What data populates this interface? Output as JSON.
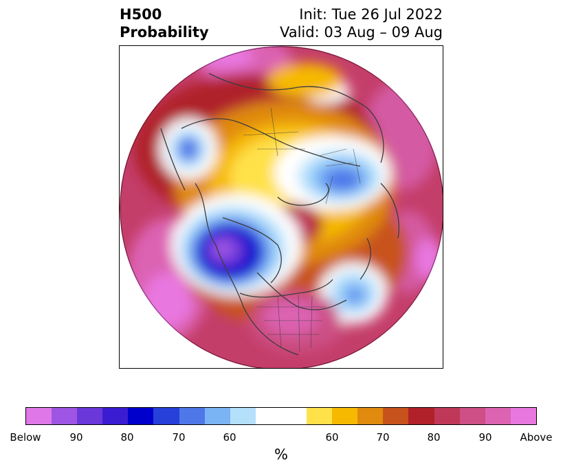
{
  "title": {
    "left_line1": "H500",
    "left_line2": "Probability",
    "right_line1": "Init: Tue 26 Jul 2022",
    "right_line2": "Valid: 03 Aug – 09 Aug"
  },
  "map": {
    "projection": "north-polar-stereographic",
    "field": "500 hPa height anomaly probability"
  },
  "colorbar": {
    "colors": [
      "#e077e8",
      "#9e55e3",
      "#6a37d9",
      "#3a1dd1",
      "#0000cc",
      "#2640d9",
      "#4e77e8",
      "#7ab4f5",
      "#b4e0fb",
      "#ffffff",
      "#ffffff",
      "#ffe14a",
      "#f6b900",
      "#e08a0e",
      "#c8521b",
      "#b0212a",
      "#bf3858",
      "#cc4f85",
      "#dc62b2",
      "#e877e0"
    ],
    "tick_labels": [
      "Below",
      "90",
      "80",
      "70",
      "60",
      "60",
      "70",
      "80",
      "90",
      "Above"
    ],
    "unit": "%"
  },
  "palette": {
    "below_strong": "#3a1dd1",
    "below_weak": "#b4e0fb",
    "neutral": "#ffffff",
    "above_weak": "#ffe14a",
    "above_strong": "#dc62b2"
  }
}
